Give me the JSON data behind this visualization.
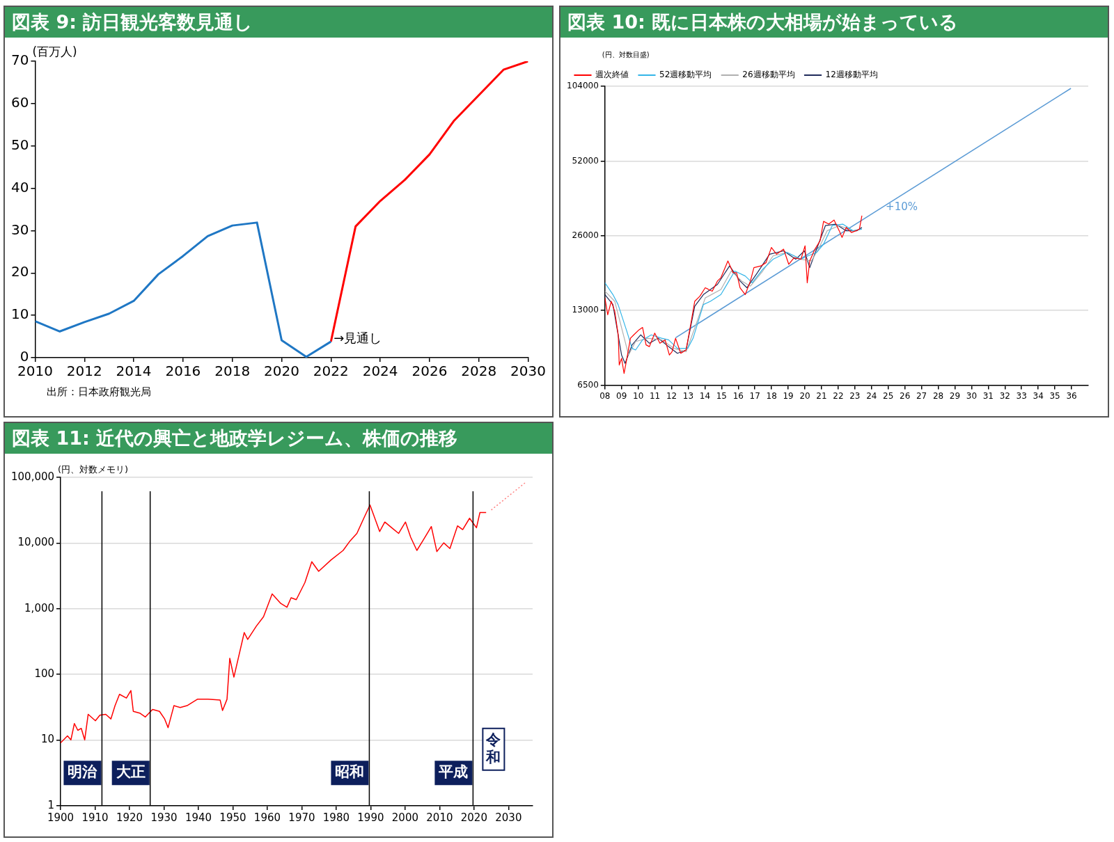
{
  "chart_data": [
    {
      "type": "line",
      "title": "図表 9: 訪日観光客数見通し",
      "ylabel": "(百万人)",
      "marker": "none",
      "series": [
        {
          "color": "#1f77c4",
          "x": [
            2010,
            2011,
            2012,
            2013,
            2014,
            2015,
            2016,
            2017,
            2018,
            2019,
            2020,
            2021,
            2022
          ],
          "values": [
            8.6,
            6.2,
            8.4,
            10.4,
            13.4,
            19.7,
            24.0,
            28.7,
            31.2,
            31.9,
            4.1,
            0.2,
            3.8
          ]
        },
        {
          "color": "#ff0000",
          "x": [
            2022,
            2023,
            2024,
            2025,
            2026,
            2027,
            2028,
            2029,
            2030
          ],
          "values": [
            3.8,
            31,
            37,
            42,
            48,
            56,
            62,
            68,
            70
          ]
        }
      ],
      "xlim": [
        2010,
        2030
      ],
      "xticks": [
        2010,
        2012,
        2014,
        2016,
        2018,
        2020,
        2022,
        2024,
        2026,
        2028,
        2030
      ],
      "ylim": [
        0,
        70
      ],
      "yticks": [
        0,
        10,
        20,
        30,
        40,
        50,
        60,
        70
      ],
      "annotations": [
        {
          "text": "→見通し",
          "x": 2022,
          "y": 4
        },
        "出所：日本政府観光局"
      ]
    },
    {
      "type": "line",
      "title": "図表 10: 既に日本株の大相場が始まっている",
      "ylabel": "(円、対数目盛)",
      "log": "y",
      "grid": "y",
      "legend": "top left",
      "marker": "none",
      "series": [
        {
          "name": "週次終値",
          "color": "#ff0000",
          "x": [
            2008.0,
            2008.17,
            2008.38,
            2008.59,
            2008.8,
            2008.86,
            2009.0,
            2009.15,
            2009.32,
            2009.53,
            2009.73,
            2010.05,
            2010.26,
            2010.47,
            2010.67,
            2010.99,
            2011.3,
            2011.61,
            2011.87,
            2012.03,
            2012.24,
            2012.55,
            2012.87,
            2013.18,
            2013.39,
            2013.7,
            2014.02,
            2014.44,
            2014.75,
            2014.96,
            2015.38,
            2015.69,
            2015.9,
            2016.11,
            2016.42,
            2016.73,
            2016.94,
            2017.36,
            2017.67,
            2017.99,
            2018.3,
            2018.72,
            2019.03,
            2019.35,
            2019.76,
            2020.01,
            2020.14,
            2020.29,
            2020.6,
            2020.91,
            2021.12,
            2021.43,
            2021.75,
            2022.06,
            2022.23,
            2022.48,
            2022.79,
            2023.06,
            2023.27,
            2023.42
          ],
          "values": [
            14610,
            12500,
            14160,
            12900,
            10370,
            7840,
            8340,
            7250,
            8340,
            10050,
            10370,
            10870,
            11110,
            9450,
            9300,
            10540,
            9590,
            9900,
            8600,
            8870,
            10050,
            8740,
            9010,
            11750,
            14160,
            14840,
            16050,
            15550,
            17080,
            17620,
            20590,
            18460,
            18460,
            16050,
            15070,
            17080,
            19340,
            19650,
            20270,
            23320,
            21900,
            22960,
            19960,
            21220,
            20910,
            23690,
            16810,
            20590,
            22960,
            24820,
            29710,
            28970,
            30080,
            27230,
            25610,
            28110,
            26800,
            27230,
            27660,
            31330
          ]
        },
        {
          "name": "52週移動平均",
          "color": "#33b5e8",
          "x": [
            2008.0,
            2008.48,
            2008.79,
            2009.32,
            2009.63,
            2009.84,
            2010.26,
            2010.78,
            2011.41,
            2011.82,
            2012.35,
            2012.97,
            2013.29,
            2013.6,
            2013.91,
            2014.33,
            2014.96,
            2015.38,
            2015.79,
            2016.42,
            2016.84,
            2017.47,
            2018.09,
            2018.93,
            2019.76,
            2020.18,
            2020.7,
            2021.12,
            2021.64,
            2022.27,
            2022.9,
            2023.42
          ],
          "values": [
            16810,
            15070,
            13740,
            10700,
            9150,
            9010,
            9900,
            10370,
            10050,
            9900,
            9150,
            9150,
            10050,
            11750,
            13740,
            14160,
            15070,
            16810,
            18740,
            17900,
            16810,
            19050,
            20910,
            22270,
            20910,
            21570,
            22270,
            24070,
            28570,
            28970,
            27230,
            27660
          ]
        },
        {
          "name": "26週移動平均",
          "color": "#b0b0b0",
          "x": [
            2008.0,
            2008.59,
            2009.11,
            2009.42,
            2009.84,
            2010.57,
            2011.41,
            2012.14,
            2012.87,
            2013.39,
            2014.02,
            2014.96,
            2015.58,
            2016.21,
            2016.73,
            2017.47,
            2018.09,
            2018.93,
            2019.76,
            2020.39,
            2020.81,
            2021.33,
            2022.06,
            2022.9,
            2023.42
          ],
          "values": [
            15550,
            14160,
            10370,
            8600,
            9750,
            10050,
            9900,
            9150,
            8870,
            11040,
            14610,
            15800,
            18740,
            17080,
            16300,
            18740,
            21570,
            22270,
            20910,
            20590,
            22960,
            27230,
            28570,
            27230,
            27660
          ]
        },
        {
          "name": "12週移動平均",
          "color": "#1f2a5a",
          "x": [
            2008.0,
            2008.48,
            2009.0,
            2009.21,
            2009.63,
            2010.15,
            2010.67,
            2011.2,
            2011.82,
            2012.35,
            2012.87,
            2013.39,
            2013.91,
            2014.75,
            2015.48,
            2016.11,
            2016.52,
            2017.15,
            2017.88,
            2018.72,
            2019.45,
            2019.97,
            2020.29,
            2020.7,
            2021.23,
            2021.85,
            2022.48,
            2023.11,
            2023.42
          ],
          "values": [
            15070,
            13740,
            8600,
            7960,
            9450,
            10370,
            9590,
            10050,
            9300,
            8740,
            9010,
            13520,
            15070,
            16550,
            19650,
            17080,
            16050,
            18460,
            21900,
            22600,
            20910,
            22600,
            19340,
            22960,
            28570,
            28970,
            27230,
            27230,
            28110
          ]
        },
        {
          "color": "#5b9bd5",
          "x": [
            2012.24,
            2035.96
          ],
          "values": [
            10100,
            102000
          ]
        }
      ],
      "xlim": [
        2008,
        2037
      ],
      "xticks": [
        {
          "value": 2008,
          "label": "08"
        },
        {
          "value": 2009,
          "label": "09"
        },
        {
          "value": 2010,
          "label": "10"
        },
        {
          "value": 2011,
          "label": "11"
        },
        {
          "value": 2012,
          "label": "12"
        },
        {
          "value": 2013,
          "label": "13"
        },
        {
          "value": 2014,
          "label": "14"
        },
        {
          "value": 2015,
          "label": "15"
        },
        {
          "value": 2016,
          "label": "16"
        },
        {
          "value": 2017,
          "label": "17"
        },
        {
          "value": 2018,
          "label": "18"
        },
        {
          "value": 2019,
          "label": "19"
        },
        {
          "value": 2020,
          "label": "20"
        },
        {
          "value": 2021,
          "label": "21"
        },
        {
          "value": 2022,
          "label": "22"
        },
        {
          "value": 2023,
          "label": "23"
        },
        {
          "value": 2024,
          "label": "24"
        },
        {
          "value": 2025,
          "label": "25"
        },
        {
          "value": 2026,
          "label": "26"
        },
        {
          "value": 2027,
          "label": "27"
        },
        {
          "value": 2028,
          "label": "28"
        },
        {
          "value": 2029,
          "label": "29"
        },
        {
          "value": 2030,
          "label": "30"
        },
        {
          "value": 2031,
          "label": "31"
        },
        {
          "value": 2032,
          "label": "32"
        },
        {
          "value": 2033,
          "label": "33"
        },
        {
          "value": 2034,
          "label": "34"
        },
        {
          "value": 2035,
          "label": "35"
        },
        {
          "value": 2036,
          "label": "36"
        }
      ],
      "ylim": [
        6500,
        104000
      ],
      "yticks": [
        6500,
        13000,
        26000,
        52000,
        104000
      ],
      "annotations": [
        "+10%"
      ]
    },
    {
      "type": "line",
      "title": "図表 11: 近代の興亡と地政学レジーム、株価の推移",
      "ylabel": "(円、対数メモリ)",
      "log": "y",
      "grid": "y",
      "marker": "none",
      "series": [
        {
          "color": "#ff0000",
          "x": [
            1900.0,
            1902.0,
            1903.0,
            1904.0,
            1905.0,
            1906.0,
            1907.0,
            1908.0,
            1910.1,
            1911.4,
            1913.1,
            1914.6,
            1915.8,
            1917.1,
            1919.1,
            1920.4,
            1921.1,
            1923.1,
            1924.6,
            1926.7,
            1928.7,
            1930.2,
            1931.2,
            1932.9,
            1934.7,
            1936.7,
            1939.7,
            1942.8,
            1946.3,
            1947.0,
            1948.3,
            1949.1,
            1950.3,
            1953.3,
            1954.3,
            1956.8,
            1958.9,
            1961.4,
            1963.9,
            1965.7,
            1966.9,
            1968.4,
            1970.9,
            1972.9,
            1974.9,
            1978.5,
            1982.0,
            1984.0,
            1986.0,
            1988.0,
            1989.8,
            1991.0,
            1992.6,
            1994.1,
            1996.1,
            1998.1,
            2000.1,
            2001.6,
            2003.4,
            2005.1,
            2007.6,
            2009.2,
            2011.2,
            2013.0,
            2015.2,
            2016.7,
            2018.7,
            2020.7,
            2021.7,
            2023.5
          ],
          "values": [
            9.1,
            11.6,
            10.1,
            17.9,
            14.1,
            15.1,
            10.1,
            24.7,
            19.7,
            24.0,
            24.7,
            21.0,
            33.5,
            49.8,
            43.7,
            56.9,
            27.4,
            25.6,
            22.5,
            29.3,
            27.4,
            21.0,
            15.5,
            33.5,
            31.3,
            33.5,
            41.9,
            41.9,
            40.8,
            28.2,
            41.9,
            176,
            91,
            434,
            341,
            543,
            757,
            1680,
            1205,
            1054,
            1469,
            1374,
            2500,
            5190,
            3720,
            5540,
            7720,
            10760,
            14030,
            23860,
            37930,
            25470,
            15000,
            20890,
            17100,
            14030,
            20890,
            12280,
            7720,
            10760,
            17810,
            7420,
            10070,
            8250,
            18280,
            16030,
            23860,
            17100,
            29110,
            29110
          ]
        },
        {
          "color": "#ff8080",
          "line_style": "dotted",
          "x": [
            2025.0,
            2035.0
          ],
          "values": [
            31920,
            84140
          ]
        }
      ],
      "xlim": [
        1900,
        2037
      ],
      "xticks": [
        1900,
        1910,
        1920,
        1930,
        1940,
        1950,
        1960,
        1970,
        1980,
        1990,
        2000,
        2010,
        2020,
        2030
      ],
      "ylim": [
        1,
        100000
      ],
      "yticks": [
        1,
        10,
        100,
        {
          "value": 1000,
          "label": "1,000"
        },
        {
          "value": 10000,
          "label": "10,000"
        },
        {
          "value": 100000,
          "label": "100,000"
        }
      ],
      "ref_lines": [
        {
          "axis": "x",
          "value": 1912,
          "color": "#000000"
        },
        {
          "axis": "x",
          "value": 1926,
          "color": "#000000"
        },
        {
          "axis": "x",
          "value": 1989.6,
          "color": "#000000"
        },
        {
          "axis": "x",
          "value": 2019.7,
          "color": "#000000"
        }
      ],
      "annotations": [
        "明治",
        "大正",
        "昭和",
        "平成",
        "令和"
      ]
    }
  ]
}
